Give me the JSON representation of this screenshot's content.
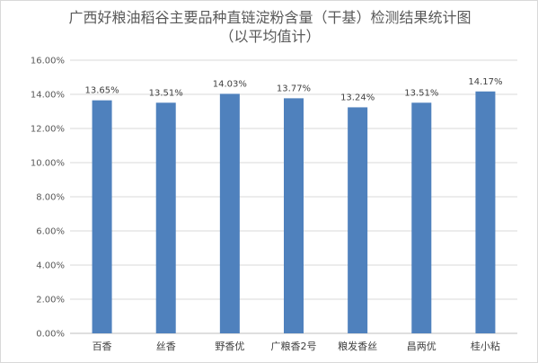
{
  "chart_data": {
    "type": "bar",
    "title": "广西好粮油稻谷主要品种直链淀粉含量（干基）检测结果统计图",
    "subtitle": "（以平均值计）",
    "categories": [
      "百香",
      "丝香",
      "野香优",
      "广粮香2号",
      "粮发香丝",
      "昌两优",
      "桂小粘"
    ],
    "values": [
      13.65,
      13.51,
      14.03,
      13.77,
      13.24,
      13.51,
      14.17
    ],
    "data_labels": [
      "13.65%",
      "13.51%",
      "14.03%",
      "13.77%",
      "13.24%",
      "13.51%",
      "14.17%"
    ],
    "y_ticks": [
      "0.00%",
      "2.00%",
      "4.00%",
      "6.00%",
      "8.00%",
      "10.00%",
      "12.00%",
      "14.00%",
      "16.00%"
    ],
    "ylim": [
      0,
      16
    ],
    "grid": true,
    "bar_color": "#4f81bd",
    "xlabel": "",
    "ylabel": ""
  }
}
